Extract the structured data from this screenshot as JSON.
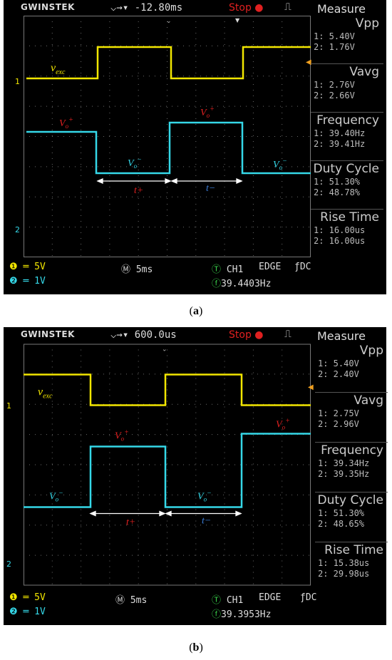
{
  "panels": [
    {
      "id": "a",
      "brand": "GWINSTEK",
      "timebase_offset": "-12.80ms",
      "status": "Stop",
      "measure_title": "Measure",
      "measurements": [
        {
          "name": "Vpp",
          "ch1": "1: 5.40V",
          "ch2": "2: 1.76V"
        },
        {
          "name": "Vavg",
          "ch1": "1: 2.76V",
          "ch2": "2: 2.66V"
        },
        {
          "name": "Frequency",
          "ch1": "1: 39.40Hz",
          "ch2": "2: 39.41Hz"
        },
        {
          "name": "Duty Cycle",
          "ch1": "1: 51.30%",
          "ch2": "2: 48.78%"
        },
        {
          "name": "Rise Time",
          "ch1": "1: 16.00us",
          "ch2": "2: 16.00us"
        }
      ],
      "ch1_scale": "5V",
      "ch2_scale": "1V",
      "timebase": "5ms",
      "trigger_source": "CH1",
      "trigger_type": "EDGE",
      "coupling": "DC",
      "trigger_freq": "39.4403Hz",
      "label_vexc": "v",
      "label_vexc_sub": "exc",
      "label_vo": "V",
      "label_vo_sub": "o",
      "label_plus": "+",
      "label_minus": "−",
      "label_tplus": "t+",
      "label_tminus": "t−",
      "caption": "a",
      "ch1_marker": "1",
      "ch2_marker": "2"
    },
    {
      "id": "b",
      "brand": "GWINSTEK",
      "timebase_offset": "600.0us",
      "status": "Stop",
      "measure_title": "Measure",
      "measurements": [
        {
          "name": "Vpp",
          "ch1": "1: 5.40V",
          "ch2": "2: 2.40V"
        },
        {
          "name": "Vavg",
          "ch1": "1: 2.75V",
          "ch2": "2: 2.96V"
        },
        {
          "name": "Frequency",
          "ch1": "1: 39.34Hz",
          "ch2": "2: 39.35Hz"
        },
        {
          "name": "Duty Cycle",
          "ch1": "1: 51.30%",
          "ch2": "2: 48.65%"
        },
        {
          "name": "Rise Time",
          "ch1": "1: 15.38us",
          "ch2": "2: 29.98us"
        }
      ],
      "ch1_scale": "5V",
      "ch2_scale": "1V",
      "timebase": "5ms",
      "trigger_source": "CH1",
      "trigger_type": "EDGE",
      "coupling": "DC",
      "trigger_freq": "39.3953Hz",
      "label_vexc": "v",
      "label_vexc_sub": "exc",
      "label_vo": "V",
      "label_vo_sub": "o",
      "label_plus": "+",
      "label_minus": "−",
      "label_tplus": "t+",
      "label_tminus": "t−",
      "caption": "b",
      "ch1_marker": "1",
      "ch2_marker": "2"
    }
  ],
  "colors": {
    "ch1": "#f2e600",
    "ch2": "#35d8e8",
    "grid": "#6a6a6a",
    "label_red": "#e02020",
    "label_blue": "#3a7bd5"
  }
}
